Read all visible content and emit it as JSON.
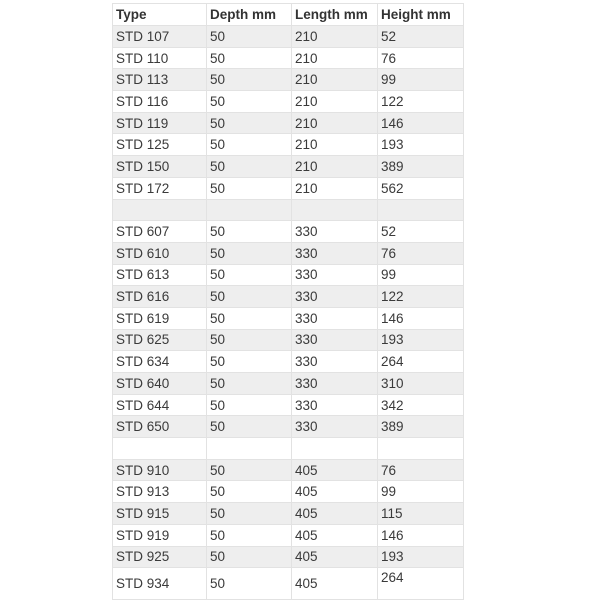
{
  "table": {
    "headers": [
      "Type",
      "Depth mm",
      "Length mm",
      "Height mm"
    ],
    "rows": [
      [
        "STD 107",
        "50",
        "210",
        "52"
      ],
      [
        "STD 110",
        "50",
        "210",
        "76"
      ],
      [
        "STD 113",
        "50",
        "210",
        "99"
      ],
      [
        "STD 116",
        "50",
        "210",
        "122"
      ],
      [
        "STD 119",
        "50",
        "210",
        "146"
      ],
      [
        "STD 125",
        "50",
        "210",
        "193"
      ],
      [
        "STD 150",
        "50",
        "210",
        "389"
      ],
      [
        "STD 172",
        "50",
        "210",
        "562"
      ],
      [
        "",
        "",
        "",
        ""
      ],
      [
        "STD 607",
        "50",
        "330",
        "52"
      ],
      [
        "STD 610",
        "50",
        "330",
        "76"
      ],
      [
        "STD 613",
        "50",
        "330",
        "99"
      ],
      [
        "STD 616",
        "50",
        "330",
        "122"
      ],
      [
        "STD 619",
        "50",
        "330",
        "146"
      ],
      [
        "STD 625",
        "50",
        "330",
        "193"
      ],
      [
        "STD 634",
        "50",
        "330",
        "264"
      ],
      [
        "STD 640",
        "50",
        "330",
        "310"
      ],
      [
        "STD 644",
        "50",
        "330",
        "342"
      ],
      [
        "STD 650",
        "50",
        "330",
        "389"
      ],
      [
        "",
        "",
        "",
        ""
      ],
      [
        "STD 910",
        "50",
        "405",
        "76"
      ],
      [
        "STD 913",
        "50",
        "405",
        "99"
      ],
      [
        "STD 915",
        "50",
        "405",
        "115"
      ],
      [
        "STD 919",
        "50",
        "405",
        "146"
      ],
      [
        "STD 925",
        "50",
        "405",
        "193"
      ],
      [
        "STD 934",
        "50",
        "405",
        "264"
      ]
    ],
    "stripe_color": "#eeeeee"
  }
}
